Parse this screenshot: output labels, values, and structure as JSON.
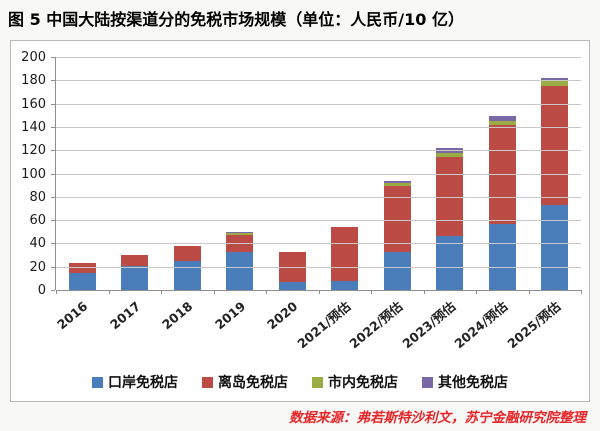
{
  "title": "图 5  中国大陆按渠道分的免税市场规模（单位：人民币/10 亿）",
  "source": "数据来源：弗若斯特沙利文，苏宁金融研究院整理",
  "chart_data": {
    "type": "bar",
    "stacked": true,
    "title": "中国大陆按渠道分的免税市场规模",
    "unit": "人民币/10亿",
    "categories": [
      "2016",
      "2017",
      "2018",
      "2019",
      "2020",
      "2021/预估",
      "2022/预估",
      "2023/预估",
      "2024/预估",
      "2025/预估"
    ],
    "series": [
      {
        "name": "口岸免税店",
        "color": "#4a7ebb",
        "values": [
          15,
          21,
          25,
          33,
          7,
          8,
          33,
          46,
          57,
          73
        ]
      },
      {
        "name": "离岛免税店",
        "color": "#bd4b45",
        "values": [
          8,
          9,
          13,
          14.5,
          26,
          46,
          56,
          68,
          85,
          102
        ]
      },
      {
        "name": "市内免税店",
        "color": "#9aad44",
        "values": [
          0,
          0,
          0,
          1.5,
          0,
          0,
          2.5,
          4,
          3.5,
          4
        ]
      },
      {
        "name": "其他免税店",
        "color": "#7a68a6",
        "values": [
          0,
          0,
          0,
          1,
          0,
          0,
          2.5,
          4,
          3.5,
          3
        ]
      }
    ],
    "totals": [
      23,
      30,
      38,
      50,
      33,
      54,
      94,
      122,
      149,
      182
    ],
    "ylim": [
      0,
      200
    ],
    "ytick_step": 20,
    "grid": true,
    "legend_position": "bottom",
    "xlabel_rotation": -40
  }
}
